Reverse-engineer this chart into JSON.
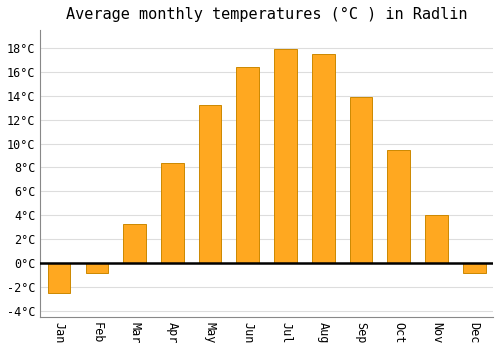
{
  "title": "Average monthly temperatures (°C ) in Radlin",
  "months": [
    "Jan",
    "Feb",
    "Mar",
    "Apr",
    "May",
    "Jun",
    "Jul",
    "Aug",
    "Sep",
    "Oct",
    "Nov",
    "Dec"
  ],
  "values": [
    -2.5,
    -0.8,
    3.3,
    8.4,
    13.2,
    16.4,
    17.9,
    17.5,
    13.9,
    9.5,
    4.0,
    -0.8
  ],
  "bar_color": "#FFA820",
  "bar_edge_color": "#CC8800",
  "ylim": [
    -4.5,
    19.5
  ],
  "yticks": [
    -4,
    -2,
    0,
    2,
    4,
    6,
    8,
    10,
    12,
    14,
    16,
    18
  ],
  "ytick_labels": [
    "-4°C",
    "-2°C",
    "0°C",
    "2°C",
    "4°C",
    "6°C",
    "8°C",
    "10°C",
    "12°C",
    "14°C",
    "16°C",
    "18°C"
  ],
  "fig_background_color": "#ffffff",
  "plot_background_color": "#ffffff",
  "grid_color": "#dddddd",
  "title_fontsize": 11,
  "tick_fontsize": 8.5,
  "zero_line_color": "#000000",
  "bar_width": 0.6
}
